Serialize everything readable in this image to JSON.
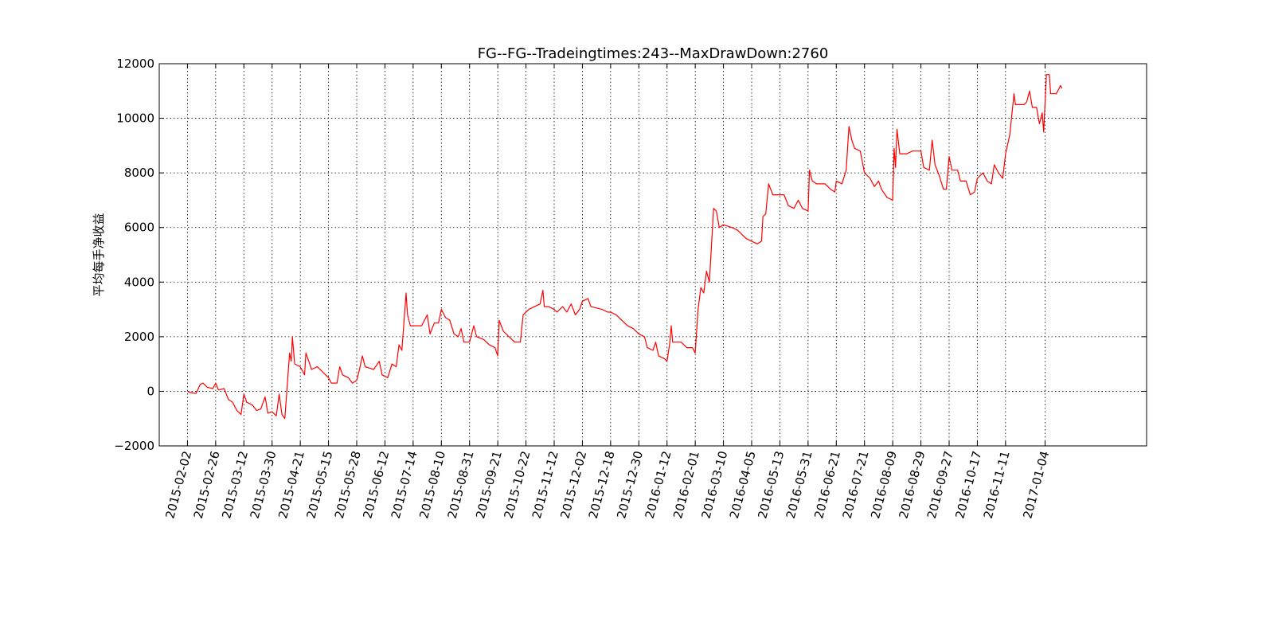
{
  "chart_data": {
    "type": "line",
    "title": "FG--FG--Tradeingtimes:243--MaxDrawDown:2760",
    "xlabel": "",
    "ylabel": "平均每手净收益",
    "ylim": [
      -2000,
      12000
    ],
    "yticks": [
      -2000,
      0,
      2000,
      4000,
      6000,
      8000,
      10000,
      12000
    ],
    "ytick_labels": [
      "−2000",
      "0",
      "2000",
      "4000",
      "6000",
      "8000",
      "10000",
      "12000"
    ],
    "xlim": [
      -1,
      34
    ],
    "xtick_positions": [
      0,
      1,
      2,
      3,
      4,
      5,
      6,
      7,
      8,
      9,
      10,
      11,
      12,
      13,
      14,
      15,
      16,
      17,
      18,
      19,
      20,
      21,
      22,
      23,
      24,
      25,
      26,
      27,
      28,
      29,
      30.4
    ],
    "xtick_labels": [
      "2015-02-02",
      "2015-02-26",
      "2015-03-12",
      "2015-03-30",
      "2015-04-21",
      "2015-05-15",
      "2015-05-28",
      "2015-06-12",
      "2015-07-14",
      "2015-08-10",
      "2015-08-31",
      "2015-09-21",
      "2015-10-22",
      "2015-11-12",
      "2015-12-02",
      "2015-12-18",
      "2015-12-30",
      "2016-01-12",
      "2016-02-01",
      "2016-03-10",
      "2016-04-05",
      "2016-05-13",
      "2016-05-31",
      "2016-06-21",
      "2016-07-21",
      "2016-08-09",
      "2016-08-29",
      "2016-09-27",
      "2016-10-17",
      "2016-11-11",
      "2017-01-04"
    ],
    "grid": true,
    "legend": "none",
    "series": [
      {
        "color": "#ff0000",
        "points": [
          [
            0,
            0
          ],
          [
            0.1,
            -50
          ],
          [
            0.3,
            -80
          ],
          [
            0.45,
            250
          ],
          [
            0.55,
            300
          ],
          [
            0.7,
            150
          ],
          [
            0.9,
            100
          ],
          [
            1.0,
            300
          ],
          [
            1.1,
            50
          ],
          [
            1.3,
            100
          ],
          [
            1.45,
            -300
          ],
          [
            1.6,
            -400
          ],
          [
            1.75,
            -700
          ],
          [
            1.9,
            -850
          ],
          [
            2.0,
            -100
          ],
          [
            2.1,
            -400
          ],
          [
            2.3,
            -500
          ],
          [
            2.45,
            -700
          ],
          [
            2.6,
            -650
          ],
          [
            2.75,
            -200
          ],
          [
            2.85,
            -800
          ],
          [
            3.0,
            -750
          ],
          [
            3.15,
            -900
          ],
          [
            3.25,
            -100
          ],
          [
            3.35,
            -850
          ],
          [
            3.45,
            -1000
          ],
          [
            3.55,
            400
          ],
          [
            3.62,
            1400
          ],
          [
            3.68,
            1100
          ],
          [
            3.72,
            2000
          ],
          [
            3.8,
            1000
          ],
          [
            4.0,
            900
          ],
          [
            4.15,
            600
          ],
          [
            4.2,
            1400
          ],
          [
            4.3,
            1100
          ],
          [
            4.4,
            800
          ],
          [
            4.6,
            900
          ],
          [
            4.8,
            700
          ],
          [
            5.0,
            500
          ],
          [
            5.1,
            300
          ],
          [
            5.3,
            300
          ],
          [
            5.4,
            900
          ],
          [
            5.5,
            600
          ],
          [
            5.7,
            500
          ],
          [
            5.85,
            300
          ],
          [
            6.0,
            400
          ],
          [
            6.1,
            800
          ],
          [
            6.2,
            1300
          ],
          [
            6.3,
            900
          ],
          [
            6.6,
            800
          ],
          [
            6.8,
            1100
          ],
          [
            6.9,
            600
          ],
          [
            7.1,
            500
          ],
          [
            7.25,
            1000
          ],
          [
            7.4,
            900
          ],
          [
            7.5,
            1700
          ],
          [
            7.6,
            1500
          ],
          [
            7.75,
            3600
          ],
          [
            7.8,
            2800
          ],
          [
            7.9,
            2400
          ],
          [
            8.3,
            2400
          ],
          [
            8.5,
            2800
          ],
          [
            8.6,
            2100
          ],
          [
            8.75,
            2500
          ],
          [
            8.9,
            2500
          ],
          [
            9.0,
            3000
          ],
          [
            9.15,
            2700
          ],
          [
            9.3,
            2600
          ],
          [
            9.45,
            2100
          ],
          [
            9.6,
            2000
          ],
          [
            9.7,
            2300
          ],
          [
            9.8,
            1800
          ],
          [
            10.0,
            1800
          ],
          [
            10.15,
            2400
          ],
          [
            10.25,
            2000
          ],
          [
            10.5,
            1900
          ],
          [
            10.7,
            1700
          ],
          [
            10.9,
            1600
          ],
          [
            11.0,
            1300
          ],
          [
            11.05,
            2600
          ],
          [
            11.2,
            2200
          ],
          [
            11.4,
            2000
          ],
          [
            11.6,
            1800
          ],
          [
            11.8,
            1800
          ],
          [
            11.9,
            2800
          ],
          [
            12.1,
            3000
          ],
          [
            12.3,
            3100
          ],
          [
            12.5,
            3200
          ],
          [
            12.6,
            3700
          ],
          [
            12.65,
            3100
          ],
          [
            12.8,
            3100
          ],
          [
            13.0,
            3000
          ],
          [
            13.1,
            2900
          ],
          [
            13.3,
            3100
          ],
          [
            13.45,
            2900
          ],
          [
            13.6,
            3200
          ],
          [
            13.75,
            2800
          ],
          [
            13.9,
            3000
          ],
          [
            14.0,
            3300
          ],
          [
            14.2,
            3400
          ],
          [
            14.3,
            3100
          ],
          [
            14.7,
            3000
          ],
          [
            14.9,
            2900
          ],
          [
            15.0,
            2900
          ],
          [
            15.2,
            2800
          ],
          [
            15.4,
            2600
          ],
          [
            15.6,
            2400
          ],
          [
            15.8,
            2300
          ],
          [
            16.0,
            2100
          ],
          [
            16.2,
            2000
          ],
          [
            16.3,
            1600
          ],
          [
            16.5,
            1500
          ],
          [
            16.6,
            1800
          ],
          [
            16.7,
            1300
          ],
          [
            16.9,
            1200
          ],
          [
            17.0,
            1100
          ],
          [
            17.1,
            1800
          ],
          [
            17.15,
            2400
          ],
          [
            17.2,
            1800
          ],
          [
            17.5,
            1800
          ],
          [
            17.7,
            1600
          ],
          [
            17.9,
            1600
          ],
          [
            18.0,
            1400
          ],
          [
            18.1,
            3000
          ],
          [
            18.2,
            3800
          ],
          [
            18.3,
            3600
          ],
          [
            18.4,
            4400
          ],
          [
            18.5,
            4000
          ],
          [
            18.65,
            6700
          ],
          [
            18.75,
            6600
          ],
          [
            18.85,
            6000
          ],
          [
            19.0,
            6100
          ],
          [
            19.3,
            6000
          ],
          [
            19.5,
            5900
          ],
          [
            19.8,
            5600
          ],
          [
            20.0,
            5500
          ],
          [
            20.2,
            5400
          ],
          [
            20.35,
            5500
          ],
          [
            20.4,
            6400
          ],
          [
            20.5,
            6500
          ],
          [
            20.6,
            7600
          ],
          [
            20.75,
            7200
          ],
          [
            21.15,
            7200
          ],
          [
            21.3,
            6800
          ],
          [
            21.5,
            6700
          ],
          [
            21.65,
            7000
          ],
          [
            21.8,
            6700
          ],
          [
            22.0,
            6600
          ],
          [
            22.05,
            8100
          ],
          [
            22.15,
            7700
          ],
          [
            22.3,
            7600
          ],
          [
            22.6,
            7600
          ],
          [
            22.8,
            7400
          ],
          [
            22.95,
            7300
          ],
          [
            23.0,
            7700
          ],
          [
            23.2,
            7600
          ],
          [
            23.35,
            8100
          ],
          [
            23.45,
            9700
          ],
          [
            23.55,
            9200
          ],
          [
            23.65,
            8900
          ],
          [
            23.85,
            8800
          ],
          [
            24.0,
            8000
          ],
          [
            24.2,
            7800
          ],
          [
            24.35,
            7500
          ],
          [
            24.5,
            7700
          ],
          [
            24.6,
            7400
          ],
          [
            24.8,
            7100
          ],
          [
            25.0,
            7000
          ],
          [
            25.05,
            8900
          ],
          [
            25.1,
            8200
          ],
          [
            25.15,
            9600
          ],
          [
            25.25,
            8700
          ],
          [
            25.5,
            8700
          ],
          [
            25.7,
            8800
          ],
          [
            26.0,
            8800
          ],
          [
            26.1,
            8200
          ],
          [
            26.3,
            8100
          ],
          [
            26.4,
            9200
          ],
          [
            26.5,
            8300
          ],
          [
            26.65,
            7900
          ],
          [
            26.8,
            7400
          ],
          [
            26.9,
            7400
          ],
          [
            27.0,
            8600
          ],
          [
            27.1,
            8100
          ],
          [
            27.3,
            8100
          ],
          [
            27.4,
            7700
          ],
          [
            27.6,
            7700
          ],
          [
            27.75,
            7200
          ],
          [
            27.9,
            7300
          ],
          [
            28.0,
            7800
          ],
          [
            28.2,
            8000
          ],
          [
            28.35,
            7700
          ],
          [
            28.5,
            7600
          ],
          [
            28.6,
            8300
          ],
          [
            28.75,
            8000
          ],
          [
            28.9,
            7800
          ],
          [
            29.0,
            8700
          ],
          [
            29.15,
            9400
          ],
          [
            29.3,
            10900
          ],
          [
            29.35,
            10500
          ],
          [
            29.5,
            10500
          ],
          [
            29.65,
            10500
          ],
          [
            29.75,
            10600
          ],
          [
            29.85,
            11000
          ],
          [
            29.95,
            10400
          ],
          [
            30.1,
            10400
          ],
          [
            30.2,
            9800
          ],
          [
            30.3,
            10200
          ],
          [
            30.35,
            9500
          ],
          [
            30.45,
            11600
          ],
          [
            30.55,
            11600
          ],
          [
            30.6,
            10900
          ],
          [
            30.8,
            10900
          ],
          [
            30.9,
            11100
          ],
          [
            30.95,
            11200
          ],
          [
            31.0,
            11100
          ]
        ]
      }
    ]
  }
}
